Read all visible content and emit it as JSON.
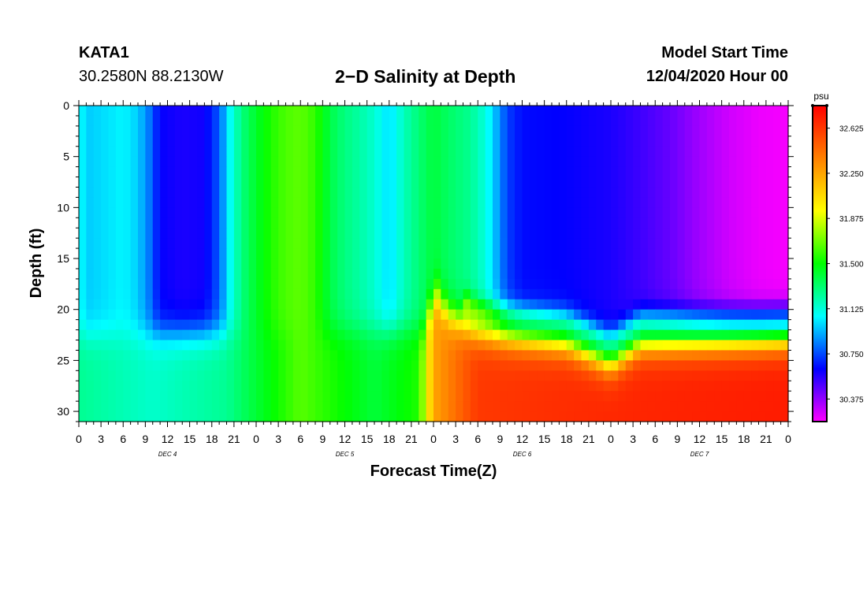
{
  "header": {
    "station_id": "KATA1",
    "coordinates": "30.2580N 88.2130W",
    "title": "2−D Salinity at Depth",
    "model_start_label": "Model Start Time",
    "model_start_value": "12/04/2020 Hour 00"
  },
  "chart_data": {
    "type": "heatmap",
    "title": "2−D Salinity at Depth",
    "xlabel": "Forecast Time(Z)",
    "ylabel": "Depth (ft)",
    "x_range_hours": [
      0,
      96
    ],
    "ylim": [
      0,
      31
    ],
    "y_inverted": true,
    "x_tick_labels": [
      "0",
      "3",
      "6",
      "9",
      "12",
      "15",
      "18",
      "21",
      "0",
      "3",
      "6",
      "9",
      "12",
      "15",
      "18",
      "21",
      "0",
      "3",
      "6",
      "9",
      "12",
      "15",
      "18",
      "21",
      "0",
      "3",
      "6",
      "9",
      "12",
      "15",
      "18",
      "21",
      "0"
    ],
    "y_tick_labels": [
      "0",
      "5",
      "10",
      "15",
      "20",
      "25",
      "30"
    ],
    "y_ticks": [
      0,
      5,
      10,
      15,
      20,
      25,
      30
    ],
    "day_labels": [
      "DEC 4",
      "DEC 5",
      "DEC 6",
      "DEC 7"
    ],
    "colorbar": {
      "unit": "psu",
      "min": 30.1875,
      "max": 32.8125,
      "tick_values": [
        30.375,
        30.75,
        31.125,
        31.5,
        31.875,
        32.25,
        32.625
      ],
      "tick_labels": [
        "30.375",
        "30.750",
        "31.125",
        "31.500",
        "31.875",
        "32.250",
        "32.625"
      ],
      "colors": [
        "#ff00ff",
        "#8000ff",
        "#0000ff",
        "#0080ff",
        "#00ffff",
        "#00ff80",
        "#00ff00",
        "#80ff00",
        "#ffff00",
        "#ffc000",
        "#ff8000",
        "#ff4000",
        "#ff0000"
      ]
    },
    "surface_salinity_psu": [
      {
        "t": 0,
        "v": 31.07
      },
      {
        "t": 1.5,
        "v": 30.98
      },
      {
        "t": 3,
        "v": 31.0
      },
      {
        "t": 6,
        "v": 31.05
      },
      {
        "t": 8,
        "v": 30.98
      },
      {
        "t": 9.5,
        "v": 30.83
      },
      {
        "t": 11,
        "v": 30.62
      },
      {
        "t": 14,
        "v": 30.58
      },
      {
        "t": 17,
        "v": 30.6
      },
      {
        "t": 19,
        "v": 30.78
      },
      {
        "t": 20.5,
        "v": 31.08
      },
      {
        "t": 22,
        "v": 31.28
      },
      {
        "t": 24,
        "v": 31.43
      },
      {
        "t": 26,
        "v": 31.55
      },
      {
        "t": 28,
        "v": 31.63
      },
      {
        "t": 30,
        "v": 31.66
      },
      {
        "t": 32,
        "v": 31.58
      },
      {
        "t": 34,
        "v": 31.38
      },
      {
        "t": 36,
        "v": 31.28
      },
      {
        "t": 38,
        "v": 31.22
      },
      {
        "t": 40,
        "v": 31.14
      },
      {
        "t": 42,
        "v": 31.0
      },
      {
        "t": 44,
        "v": 31.18
      },
      {
        "t": 46,
        "v": 31.3
      },
      {
        "t": 48,
        "v": 31.4
      },
      {
        "t": 50,
        "v": 31.33
      },
      {
        "t": 53,
        "v": 31.25
      },
      {
        "t": 55,
        "v": 31.12
      },
      {
        "t": 56.5,
        "v": 30.93
      },
      {
        "t": 58,
        "v": 30.73
      },
      {
        "t": 60,
        "v": 30.64
      },
      {
        "t": 66,
        "v": 30.62
      },
      {
        "t": 72,
        "v": 30.58
      },
      {
        "t": 76,
        "v": 30.52
      },
      {
        "t": 80,
        "v": 30.45
      },
      {
        "t": 84,
        "v": 30.35
      },
      {
        "t": 88,
        "v": 30.27
      },
      {
        "t": 92,
        "v": 30.22
      },
      {
        "t": 96,
        "v": 30.2
      }
    ],
    "bottom_layer_salinity_psu": [
      {
        "t": 0,
        "v": 31.25
      },
      {
        "t": 10,
        "v": 31.15
      },
      {
        "t": 20,
        "v": 31.25
      },
      {
        "t": 30,
        "v": 31.65
      },
      {
        "t": 40,
        "v": 31.4
      },
      {
        "t": 46,
        "v": 31.55
      },
      {
        "t": 48,
        "v": 32.25
      },
      {
        "t": 54,
        "v": 32.62
      },
      {
        "t": 72,
        "v": 32.68
      },
      {
        "t": 96,
        "v": 32.72
      }
    ],
    "halocline_depth_ft": [
      {
        "t": 0,
        "v": 22.5
      },
      {
        "t": 47,
        "v": 22
      },
      {
        "t": 48,
        "v": 18
      },
      {
        "t": 50,
        "v": 20.5
      },
      {
        "t": 54,
        "v": 22
      },
      {
        "t": 66,
        "v": 23
      },
      {
        "t": 72,
        "v": 25
      },
      {
        "t": 76,
        "v": 23
      },
      {
        "t": 96,
        "v": 22.5
      }
    ]
  }
}
